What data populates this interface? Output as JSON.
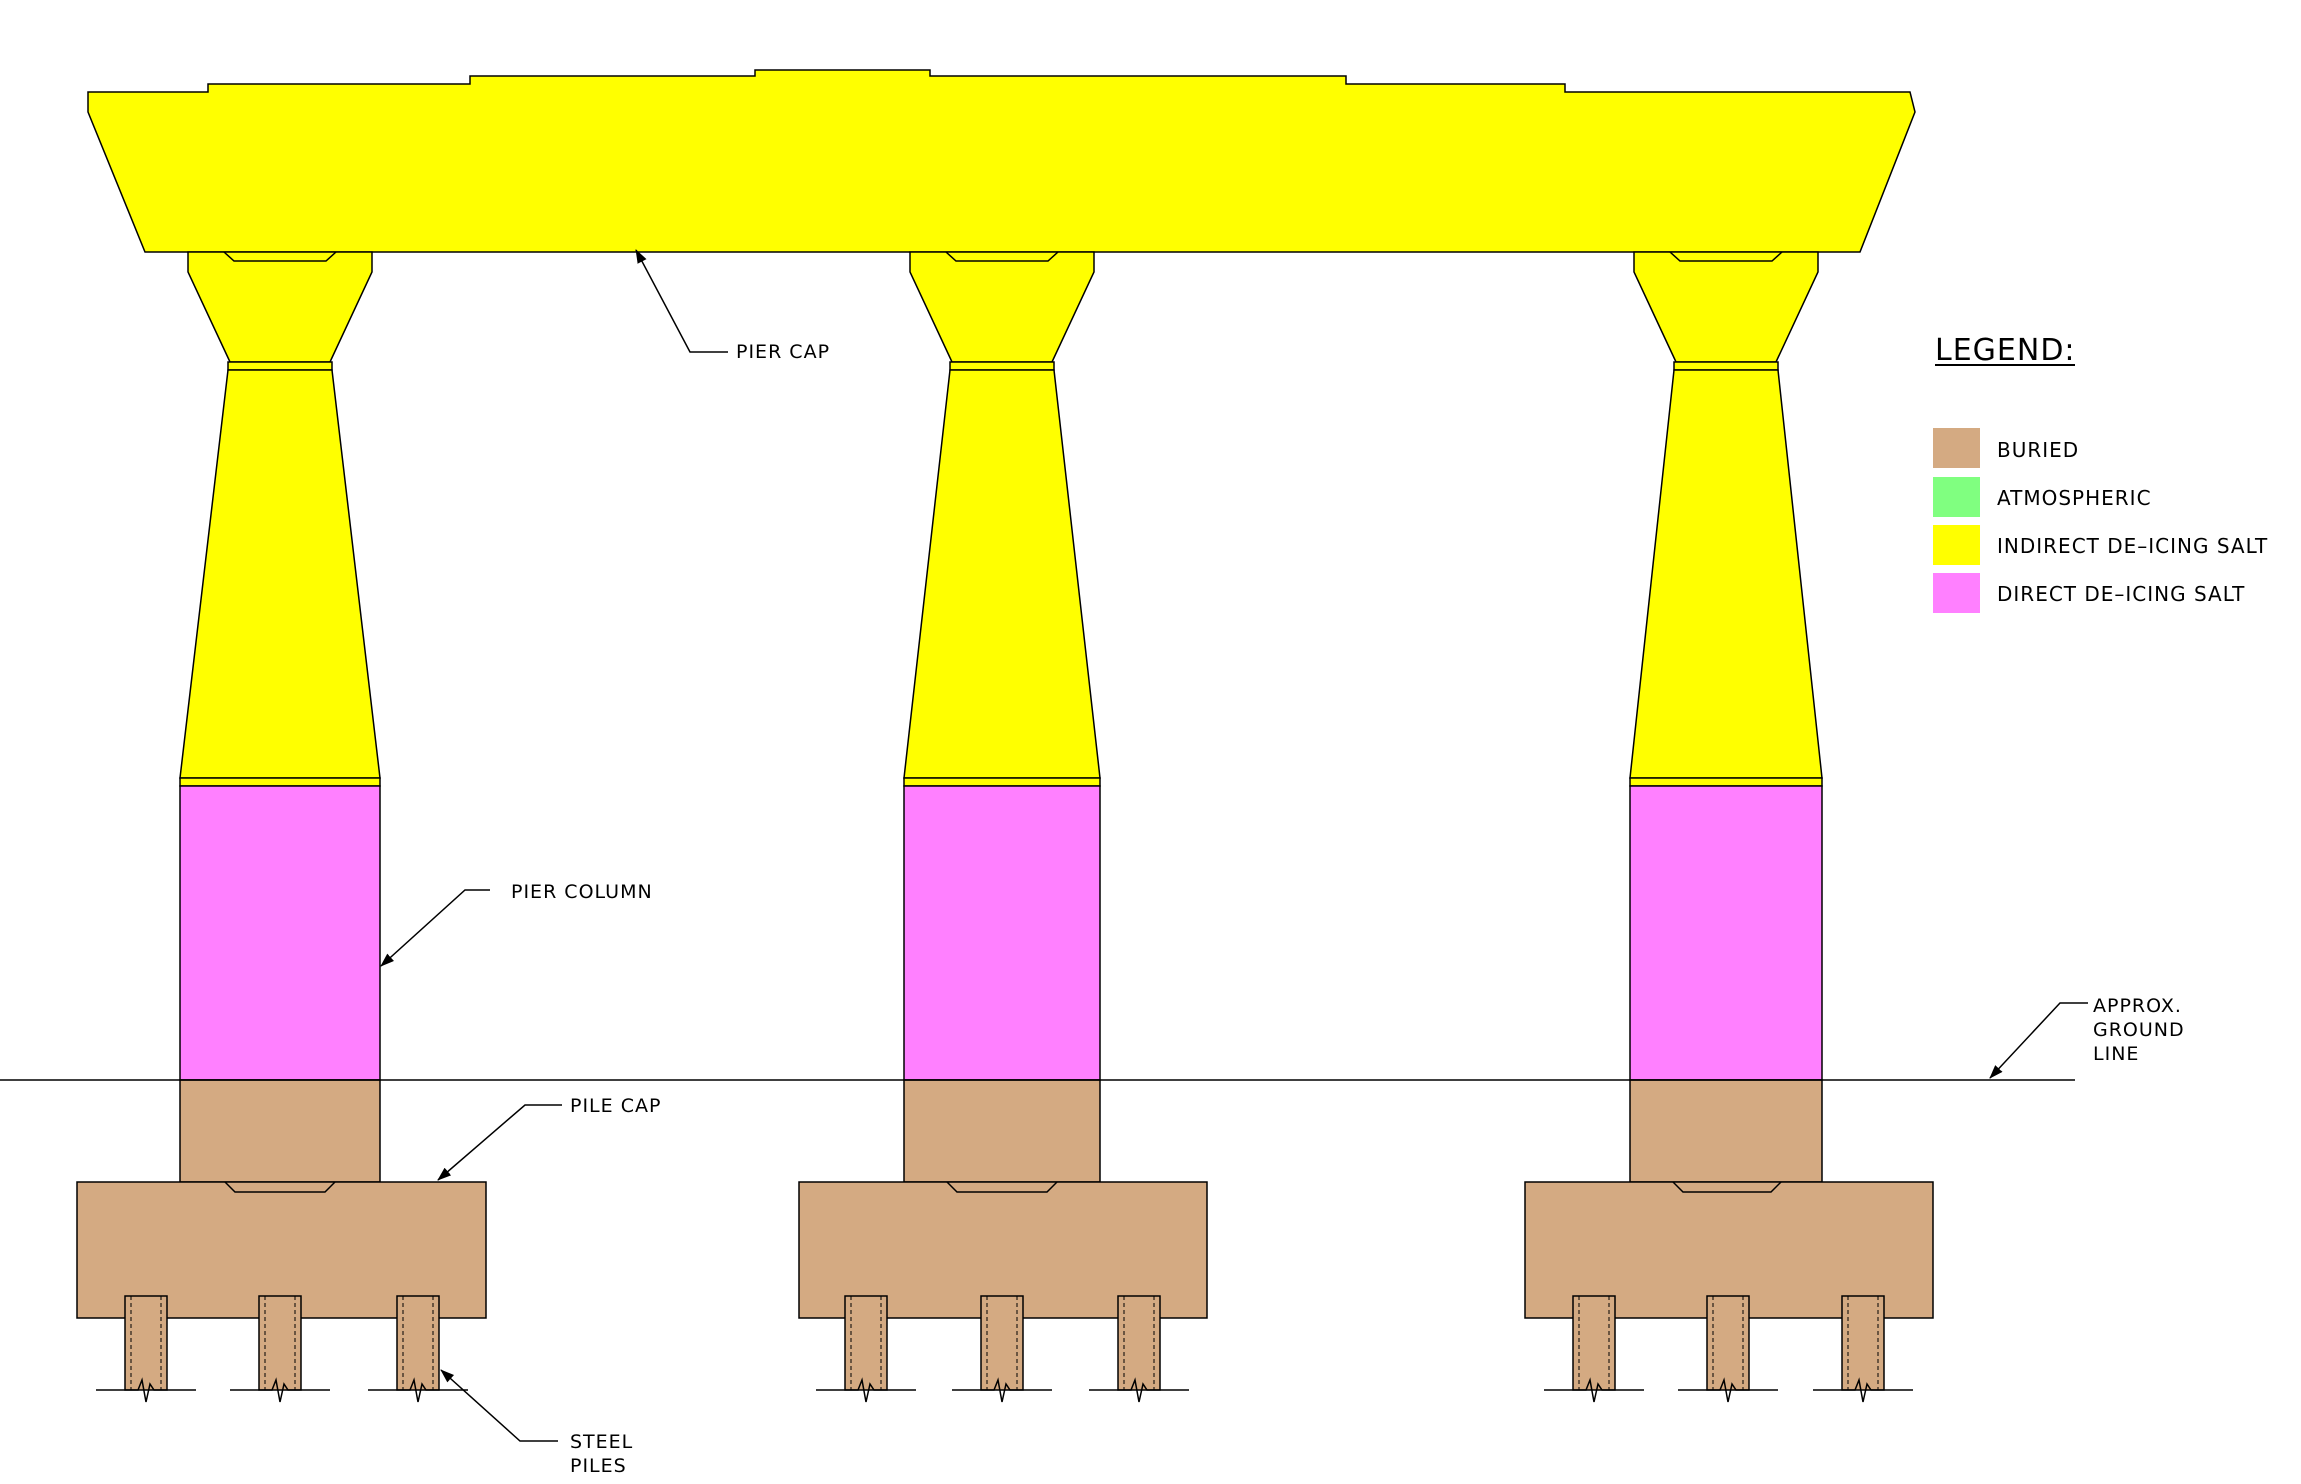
{
  "labels": {
    "pier_cap": "PIER CAP",
    "pier_column": "PIER COLUMN",
    "pile_cap": "PILE CAP",
    "steel_piles": [
      "STEEL",
      "PILES"
    ],
    "ground_line": [
      "APPROX.",
      "GROUND",
      "LINE"
    ]
  },
  "legend": {
    "title": "LEGEND:",
    "items": [
      {
        "label": "BURIED",
        "color": "#d4aa82"
      },
      {
        "label": "ATMOSPHERIC",
        "color": "#80ff80"
      },
      {
        "label": "INDIRECT DE–ICING SALT",
        "color": "#ffff00"
      },
      {
        "label": "DIRECT DE–ICING SALT",
        "color": "#ff80ff"
      }
    ]
  },
  "colors": {
    "indirect": "#ffff00",
    "direct": "#ff80ff",
    "buried": "#d4aa82",
    "outline": "#000000"
  }
}
